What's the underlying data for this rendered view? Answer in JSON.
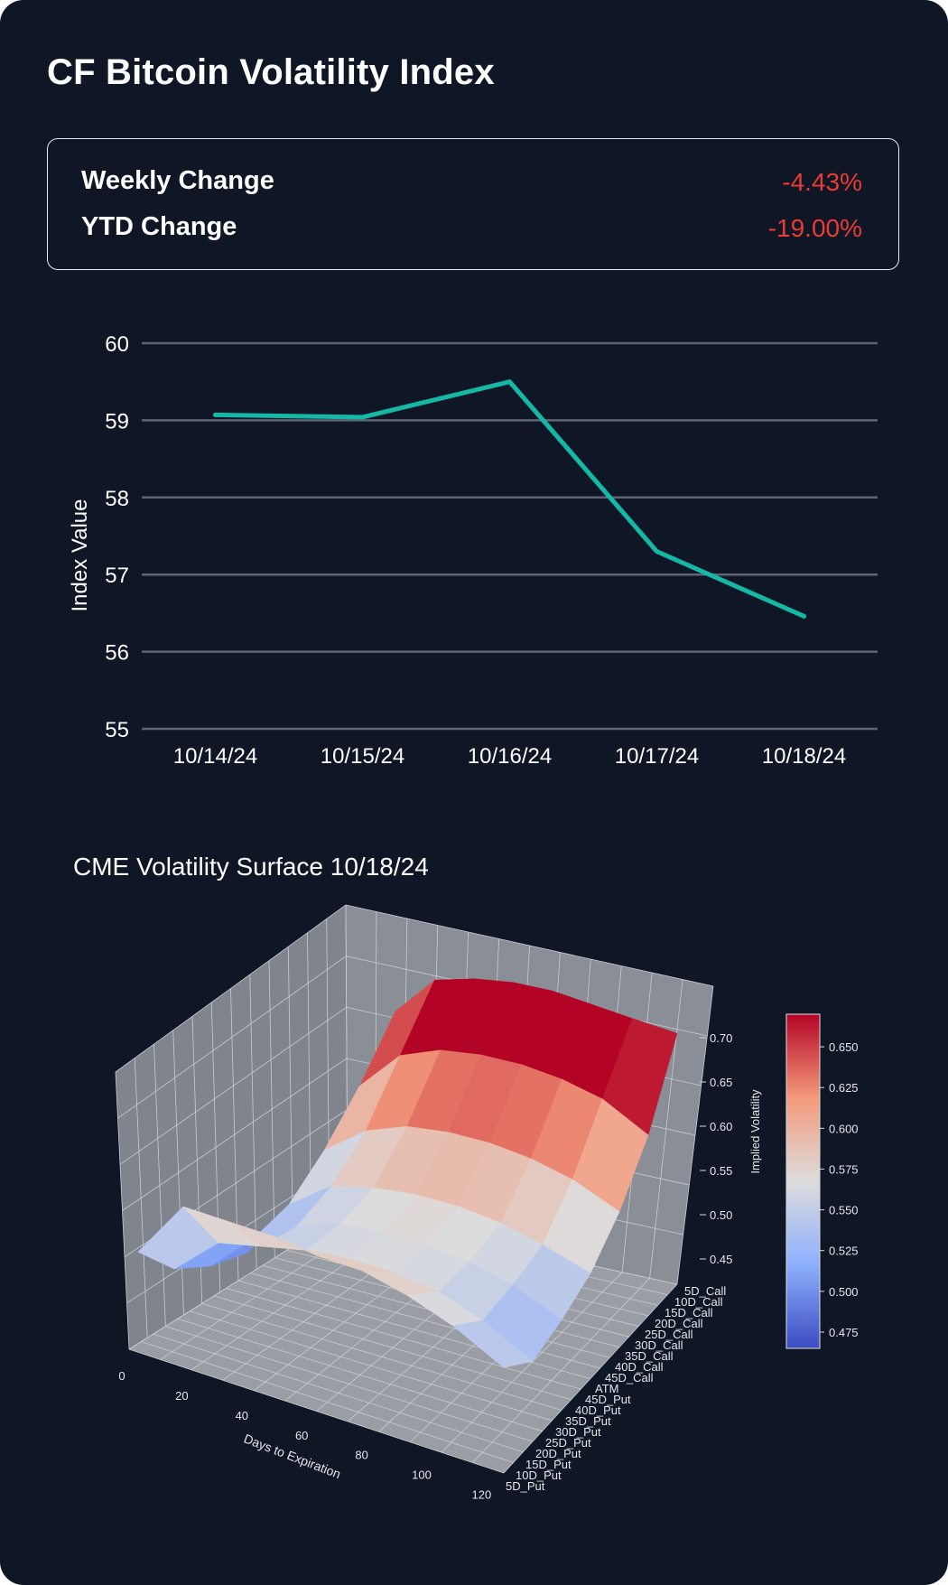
{
  "header": {
    "title": "CF Bitcoin Volatility Index"
  },
  "stats": [
    {
      "label": "Weekly Change",
      "value": "-4.43%"
    },
    {
      "label": "YTD Change",
      "value": "-19.00%"
    }
  ],
  "colors": {
    "background": "#0f1626",
    "line": "#14b8a6",
    "negative": "#ec3b32",
    "grid": "#5f6470",
    "panel": "#7f8490"
  },
  "chart_data": [
    {
      "type": "line",
      "title": "",
      "xlabel": "",
      "ylabel": "Index Value",
      "categories": [
        "10/14/24",
        "10/15/24",
        "10/16/24",
        "10/17/24",
        "10/18/24"
      ],
      "series": [
        {
          "name": "CF Bitcoin Volatility Index",
          "values": [
            59.07,
            59.04,
            59.5,
            57.3,
            56.46
          ]
        }
      ],
      "ylim": [
        55,
        60
      ],
      "yticks": [
        55,
        56,
        57,
        58,
        59,
        60
      ],
      "grid": true
    },
    {
      "type": "surface",
      "title": "CME Volatility Surface 10/18/24",
      "xlabel": "Days to Expiration",
      "ylabel": "",
      "zlabel": "Implied Volatility",
      "xticks": [
        0,
        20,
        40,
        60,
        80,
        100,
        120
      ],
      "yticks": [
        "5D_Call",
        "10D_Call",
        "15D_Call",
        "20D_Call",
        "25D_Call",
        "30D_Call",
        "35D_Call",
        "40D_Call",
        "45D_Call",
        "ATM",
        "45D_Put",
        "40D_Put",
        "35D_Put",
        "30D_Put",
        "25D_Put",
        "20D_Put",
        "15D_Put",
        "10D_Put",
        "5D_Put"
      ],
      "zticks": [
        "0.45",
        "0.50",
        "0.55",
        "0.60",
        "0.65",
        "0.70"
      ],
      "zlim": [
        0.44,
        0.71
      ],
      "colorbar": {
        "ticks": [
          "0.475",
          "0.500",
          "0.525",
          "0.550",
          "0.575",
          "0.600",
          "0.625",
          "0.650"
        ],
        "range": [
          0.465,
          0.67
        ]
      },
      "surface_rows": [
        {
          "delta": "5D_Call",
          "values": [
            0.54,
            0.65,
            0.69,
            0.7,
            0.705,
            0.705,
            0.7,
            0.695,
            0.69
          ]
        },
        {
          "delta": "15D_Call",
          "values": [
            0.505,
            0.6,
            0.64,
            0.655,
            0.66,
            0.66,
            0.655,
            0.645,
            0.62
          ]
        },
        {
          "delta": "30D_Call",
          "values": [
            0.485,
            0.56,
            0.59,
            0.605,
            0.61,
            0.61,
            0.605,
            0.595,
            0.575
          ]
        },
        {
          "delta": "ATM",
          "values": [
            0.47,
            0.53,
            0.56,
            0.57,
            0.575,
            0.575,
            0.57,
            0.56,
            0.545
          ]
        },
        {
          "delta": "35D_Put",
          "values": [
            0.48,
            0.52,
            0.545,
            0.56,
            0.565,
            0.565,
            0.56,
            0.55,
            0.53
          ]
        },
        {
          "delta": "20D_Put",
          "values": [
            0.5,
            0.54,
            0.55,
            0.56,
            0.565,
            0.565,
            0.56,
            0.545,
            0.52
          ]
        },
        {
          "delta": "5D_Put",
          "values": [
            0.54,
            0.6,
            0.6,
            0.6,
            0.595,
            0.595,
            0.585,
            0.57,
            0.545
          ]
        }
      ],
      "surface_days": [
        3,
        18,
        33,
        48,
        63,
        78,
        93,
        108,
        125
      ]
    }
  ]
}
